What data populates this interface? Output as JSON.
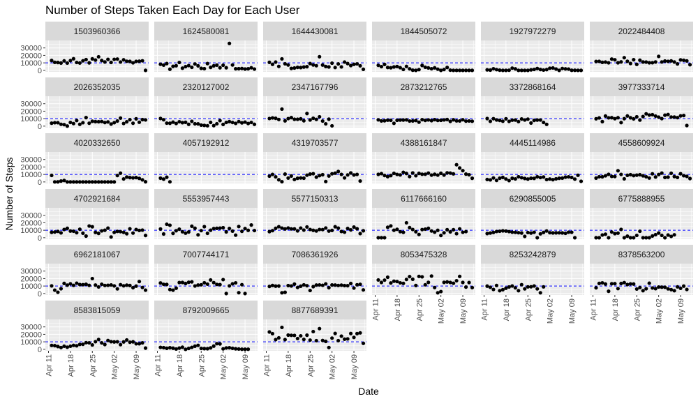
{
  "chart_data": {
    "type": "scatter",
    "title": "Number of Steps Taken Each Day for Each User",
    "xlabel": "Date",
    "ylabel": "Number of Steps",
    "facet": "per user id, 6 columns, free x axis on bottom facets",
    "xlim": [
      "2016-04-10",
      "2016-05-13"
    ],
    "ylim": [
      -2000,
      40000
    ],
    "y_ticks": [
      0,
      10000,
      20000,
      30000
    ],
    "y_tick_labels": [
      "0",
      "10000",
      "20000",
      "30000"
    ],
    "x_ticks": [
      "2016-04-11",
      "2016-04-18",
      "2016-04-25",
      "2016-05-02",
      "2016-05-09"
    ],
    "x_tick_labels": [
      "Apr 11",
      "Apr 18",
      "Apr 25",
      "May 02",
      "May 09"
    ],
    "reference_line": {
      "y": 10000,
      "style": "dashed",
      "color": "#0000ff"
    },
    "colors": {
      "panel_bg": "#ebebeb",
      "strip_bg": "#d9d9d9",
      "grid": "#ffffff",
      "point": "#000000",
      "axis_text": "#4d4d4d"
    },
    "x_dates": [
      "2016-04-12",
      "2016-04-13",
      "2016-04-14",
      "2016-04-15",
      "2016-04-16",
      "2016-04-17",
      "2016-04-18",
      "2016-04-19",
      "2016-04-20",
      "2016-04-21",
      "2016-04-22",
      "2016-04-23",
      "2016-04-24",
      "2016-04-25",
      "2016-04-26",
      "2016-04-27",
      "2016-04-28",
      "2016-04-29",
      "2016-04-30",
      "2016-05-01",
      "2016-05-02",
      "2016-05-03",
      "2016-05-04",
      "2016-05-05",
      "2016-05-06",
      "2016-05-07",
      "2016-05-08",
      "2016-05-09",
      "2016-05-10",
      "2016-05-11",
      "2016-05-12"
    ],
    "panels": [
      {
        "name": "1503960366",
        "values": [
          13162,
          10735,
          10460,
          9762,
          12669,
          9705,
          13019,
          15506,
          10544,
          9819,
          12764,
          14371,
          10039,
          15355,
          13755,
          18134,
          13154,
          11181,
          14673,
          10602,
          14727,
          15103,
          11100,
          14070,
          12159,
          11992,
          10060,
          12022,
          12207,
          12770,
          0
        ]
      },
      {
        "name": "1624580081",
        "values": [
          8163,
          7007,
          9107,
          1510,
          5370,
          6175,
          10536,
          2916,
          4974,
          6349,
          4026,
          8538,
          6076,
          2661,
          2245,
          9102,
          3924,
          6036,
          7002,
          3478,
          6840,
          3500,
          36019,
          7155,
          2100,
          2193,
          2470,
          1727,
          2104,
          3427,
          1700
        ]
      },
      {
        "name": "1644430081",
        "values": [
          10694,
          8001,
          11037,
          5263,
          15300,
          8757,
          7132,
          2564,
          3120,
          3984,
          3680,
          4410,
          4860,
          9108,
          7135,
          6213,
          18213,
          7100,
          5140,
          4530,
          9610,
          3790,
          8580,
          4580,
          11100,
          9100,
          6410,
          8030,
          8660,
          6080,
          1400
        ]
      },
      {
        "name": "1844505072",
        "values": [
          6697,
          4929,
          7937,
          3844,
          3414,
          4525,
          5135,
          3545,
          1202,
          5227,
          2000,
          220,
          2,
          1000,
          6500,
          4100,
          3250,
          2150,
          3380,
          1560,
          0,
          1100,
          3820,
          250,
          0,
          0,
          0,
          0,
          0,
          0,
          0
        ]
      },
      {
        "name": "1927972279",
        "values": [
          678,
          356,
          2163,
          980,
          244,
          0,
          0,
          149,
          2945,
          1980,
          0,
          0,
          0,
          0,
          690,
          1205,
          2430,
          1160,
          400,
          1010,
          2830,
          3200,
          1720,
          0,
          2480,
          1940,
          1700,
          100,
          100,
          0,
          0
        ]
      },
      {
        "name": "2022484408",
        "values": [
          11875,
          12024,
          10690,
          11034,
          10100,
          15112,
          14131,
          10137,
          11300,
          16950,
          12100,
          9220,
          14210,
          8020,
          13550,
          11210,
          11050,
          10120,
          10200,
          11200,
          18660,
          11250,
          12450,
          12060,
          12640,
          11210,
          8590,
          13950,
          13450,
          12620,
          7550
        ]
      },
      {
        "name": "2026352035",
        "values": [
          3950,
          4570,
          4600,
          2480,
          2000,
          100,
          4920,
          3440,
          7500,
          2420,
          4570,
          11400,
          3900,
          6520,
          6050,
          5920,
          6220,
          4790,
          5660,
          2770,
          4640,
          6860,
          10750,
          3540,
          5800,
          8700,
          3860,
          9770,
          5200,
          8740,
          8300
        ]
      },
      {
        "name": "2320127002",
        "values": [
          10220,
          8540,
          3990,
          3830,
          5340,
          3550,
          5880,
          4660,
          5120,
          2450,
          6460,
          3130,
          3000,
          1390,
          990,
          490,
          5000,
          710,
          3170,
          7370,
          2300,
          4930,
          6130,
          4920,
          3660,
          6110,
          4410,
          5430,
          3520,
          4960,
          2410
        ]
      },
      {
        "name": "2347167796",
        "values": [
          10200,
          11000,
          10500,
          8930,
          22770,
          7100,
          10100,
          11400,
          9180,
          9170,
          9800,
          7180,
          16900,
          8280,
          10550,
          9000,
          12490,
          6800,
          3100,
          9300,
          400
        ]
      },
      {
        "name": "2873212765",
        "values": [
          8450,
          6970,
          7200,
          8000,
          7730,
          3800,
          7800,
          8150,
          8140,
          8420,
          6820,
          6950,
          7580,
          5280,
          8680,
          7670,
          8330,
          7330,
          8700,
          7600,
          7800,
          8300,
          8850,
          6370,
          8500,
          7060,
          6930,
          8570,
          6670,
          6900,
          6570
        ]
      },
      {
        "name": "3372868164",
        "values": [
          10130,
          6450,
          9930,
          8240,
          7680,
          6560,
          9800,
          6410,
          8000,
          8130,
          6090,
          9530,
          8210,
          9370,
          4180,
          7670,
          8130,
          8220,
          4940,
          2390
        ]
      },
      {
        "name": "3977333714",
        "values": [
          9850,
          11000,
          6030,
          13510,
          11110,
          11290,
          9950,
          11270,
          4770,
          9990,
          13610,
          11210,
          9690,
          12450,
          8130,
          12840,
          16470,
          14830,
          15300,
          13450,
          12060,
          10090,
          14650,
          15560,
          12200,
          12160,
          11360,
          13720,
          14190,
          800
        ]
      },
      {
        "name": "4020332650",
        "values": [
          8740,
          60,
          120,
          1150,
          1970,
          0,
          0,
          0,
          0,
          0,
          0,
          0,
          0,
          0,
          0,
          0,
          0,
          0,
          0,
          0,
          0,
          8560,
          11730,
          3980,
          6500,
          5800,
          5400,
          5800,
          4700,
          2800,
          180
        ]
      },
      {
        "name": "4057192912",
        "values": [
          5000,
          3720,
          6300,
          140
        ]
      },
      {
        "name": "4319703577",
        "values": [
          7750,
          10100,
          6800,
          2900,
          260,
          10500,
          5150,
          7900,
          3300,
          4900,
          5300,
          4990,
          9000,
          10500,
          11000,
          6400,
          8500,
          9650,
          500,
          7950,
          10900,
          11700,
          13950,
          10100,
          5400,
          9400,
          12000,
          9300,
          10100,
          1200
        ]
      },
      {
        "name": "4388161847",
        "values": [
          10120,
          11100,
          8600,
          7100,
          8500,
          11460,
          10100,
          9400,
          12800,
          11290,
          7200,
          11980,
          8300,
          11400,
          10300,
          10330,
          11800,
          9120,
          10280,
          9160,
          11550,
          9200,
          12100,
          11800,
          10800,
          22990,
          18650,
          15100,
          10500,
          9600,
          4900
        ]
      },
      {
        "name": "4445114986",
        "values": [
          3280,
          2740,
          5270,
          2060,
          5000,
          6050,
          3880,
          1810,
          4860,
          4030,
          6930,
          5650,
          4630,
          3820,
          4930,
          4740,
          6860,
          5890,
          6580,
          3180,
          3900,
          3040,
          4120,
          4910,
          5080,
          6370,
          6810,
          5990,
          3770,
          8890,
          850
        ]
      },
      {
        "name": "4558609924",
        "values": [
          5140,
          6920,
          6870,
          8190,
          10200,
          7370,
          7250,
          14980,
          10080,
          4130,
          8840,
          9700,
          8460,
          9100,
          9640,
          8170,
          6920,
          5200,
          10900,
          6630,
          9910,
          11830,
          6030,
          6380,
          11600,
          7200,
          5970,
          10950,
          8310,
          7450,
          4530
        ]
      },
      {
        "name": "4702921684",
        "values": [
          7210,
          7620,
          8430,
          6460,
          11000,
          12600,
          8950,
          8670,
          6680,
          11340,
          6030,
          2200,
          15700,
          14700,
          7100,
          5800,
          9150,
          10000,
          12800,
          1000,
          7150,
          8460,
          8100,
          7190,
          5300,
          11920,
          6230,
          11000,
          9700,
          10200,
          3000
        ]
      },
      {
        "name": "5553957443",
        "values": [
          11670,
          5000,
          18000,
          16700,
          5800,
          9350,
          11440,
          8000,
          6100,
          7700,
          15400,
          12700,
          3860,
          9500,
          14800,
          5900,
          10000,
          12300,
          12600,
          12900,
          13400,
          7800,
          12400,
          8830,
          3400,
          15000,
          8570,
          12300,
          9900,
          17000,
          9600
        ]
      },
      {
        "name": "5577150313",
        "values": [
          8130,
          9500,
          12600,
          14750,
          12900,
          11750,
          13000,
          11800,
          11800,
          9200,
          12900,
          10200,
          14400,
          11000,
          9900,
          9100,
          11000,
          10900,
          13000,
          8900,
          9800,
          14700,
          12800,
          8300,
          7400,
          12400,
          10500,
          14200,
          12000,
          5500,
          9300
        ]
      },
      {
        "name": "6117666160",
        "values": [
          0,
          0,
          0,
          14000,
          15800,
          10000,
          11260,
          8100,
          7200,
          20000,
          13500,
          11000,
          8000,
          4350,
          10900,
          11500,
          12600,
          9000,
          7400,
          9900,
          3000,
          6600,
          10700,
          7800,
          10700,
          5400,
          11800,
          7300,
          8200
        ]
      },
      {
        "name": "6290855005",
        "values": [
          5600,
          6200,
          7100,
          8300,
          8700,
          9200,
          8900,
          8200,
          7400,
          7200,
          6700,
          6300,
          1800,
          6900,
          6200,
          7300,
          0,
          5200,
          7100,
          9000,
          6700,
          6400,
          6500,
          6600,
          6400,
          5900,
          7400,
          7300,
          0
        ]
      },
      {
        "name": "6775888955",
        "values": [
          0,
          0,
          3630,
          4700,
          0,
          7630,
          5460,
          6100,
          11100,
          0,
          2100,
          0,
          0,
          3100,
          8700,
          0,
          0,
          0,
          2300,
          4100,
          6300,
          3100,
          0,
          3600,
          1800,
          3900
        ]
      },
      {
        "name": "6962181067",
        "values": [
          10200,
          4500,
          1700,
          6400,
          13500,
          11200,
          13000,
          10900,
          13800,
          12000,
          11800,
          12400,
          10900,
          20000,
          11300,
          8800,
          12400,
          10800,
          11000,
          11500,
          10200,
          6200,
          11800,
          10300,
          11200,
          10700,
          7800,
          9900,
          16000,
          8100,
          4500
        ]
      },
      {
        "name": "7007744171",
        "values": [
          14100,
          12300,
          12100,
          5300,
          4500,
          7100,
          14700,
          14800,
          13400,
          15100,
          15600,
          10100,
          11300,
          11700,
          14400,
          12500,
          18100,
          14600,
          12200,
          11900,
          18600,
          0,
          10200,
          13000,
          14300,
          1100,
          11800,
          0
        ]
      },
      {
        "name": "7086361926",
        "values": [
          9500,
          10800,
          9900,
          10000,
          1000,
          1600,
          10600,
          10100,
          12600,
          8100,
          9800,
          11600,
          10400,
          4000,
          9200,
          11300,
          11500,
          11000,
          12900,
          7800,
          11400,
          11300,
          10800,
          11200,
          10600,
          10500,
          13400,
          7300,
          11700,
          12300,
          4800
        ]
      },
      {
        "name": "8053475328",
        "values": [
          18100,
          14800,
          17900,
          21800,
          14100,
          16500,
          16000,
          14300,
          13600,
          18800,
          22600,
          19100,
          10700,
          22900,
          22300,
          11700,
          14900,
          23400,
          8000,
          1000,
          2600,
          14900,
          15500,
          14800,
          13700,
          17100,
          22900,
          14800,
          8600,
          14700,
          7900
        ]
      },
      {
        "name": "8253242879",
        "values": [
          9900,
          8300,
          5400,
          10700,
          3800,
          5100,
          7100,
          8800,
          10100,
          7600,
          3800,
          11800,
          6200,
          8900,
          9000,
          10100,
          6200,
          1000,
          8900
        ]
      },
      {
        "name": "8378563200",
        "values": [
          7600,
          13500,
          14300,
          12700,
          3000,
          13100,
          13200,
          6600,
          13400,
          14600,
          12000,
          12900,
          12700,
          6000,
          8000,
          3800,
          6400,
          13800,
          7400,
          6500,
          8700,
          8500,
          8400,
          6200,
          5200,
          3800,
          8900,
          6900,
          9900,
          5400
        ]
      },
      {
        "name": "8583815059",
        "values": [
          5200,
          4900,
          3700,
          2400,
          4100,
          2800,
          4100,
          5300,
          4700,
          6600,
          6700,
          8900,
          8700,
          5800,
          10200,
          13100,
          8600,
          6400,
          11800,
          10200,
          9900,
          10100,
          6200,
          9900,
          12500,
          9500,
          10000,
          7400,
          7400,
          8600,
          1600
        ]
      },
      {
        "name": "8792009665",
        "values": [
          2600,
          2200,
          1400,
          2100,
          1500,
          400,
          1600,
          2800,
          0,
          1200,
          2600,
          4200,
          5300,
          1200,
          900,
          800,
          1900,
          4300,
          7500,
          7200,
          600,
          1800,
          2100,
          1300,
          700,
          400,
          100,
          100,
          100
        ]
      },
      {
        "name": "8877689391",
        "values": [
          23200,
          20900,
          13000,
          15300,
          29300,
          13000,
          19000,
          18700,
          18600,
          14400,
          18000,
          13200,
          18900,
          12300,
          23700,
          11600,
          27700,
          11800,
          10600,
          2400,
          15000,
          21200,
          11600,
          17600,
          13500,
          13900,
          21100,
          15900,
          21000,
          22000,
          8000
        ]
      }
    ]
  }
}
